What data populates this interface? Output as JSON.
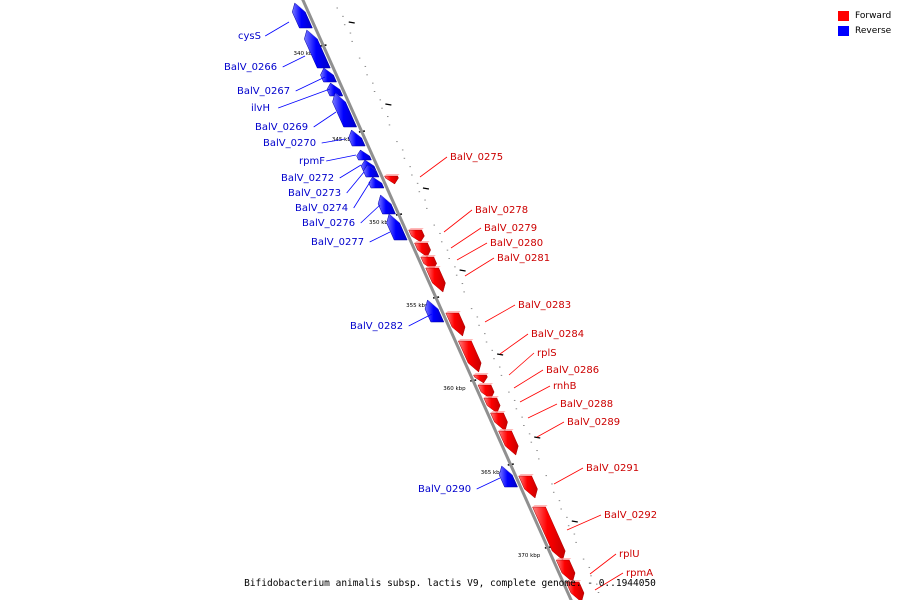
{
  "caption": "Bifidobacterium animalis subsp. lactis V9, complete genome. - 0..1944050",
  "legend": [
    {
      "label": "Forward",
      "color": "#ff0000"
    },
    {
      "label": "Reverse",
      "color": "#0000ff"
    }
  ],
  "colors": {
    "forward": "#ff0000",
    "reverse": "#0000ff",
    "forward_label": "#cc0000",
    "reverse_label": "#0000cc",
    "backbone": "#909090"
  },
  "scale_labels": [
    "340 kbp",
    "345 kbp",
    "350 kbp",
    "355 kbp",
    "360 kbp",
    "365 kbp",
    "370 kbp"
  ],
  "genes": [
    {
      "label": "cysS",
      "strand": "reverse"
    },
    {
      "label": "BalV_0266",
      "strand": "reverse"
    },
    {
      "label": "BalV_0267",
      "strand": "reverse"
    },
    {
      "label": "ilvH",
      "strand": "reverse"
    },
    {
      "label": "BalV_0269",
      "strand": "reverse"
    },
    {
      "label": "BalV_0270",
      "strand": "reverse"
    },
    {
      "label": "rpmF",
      "strand": "reverse"
    },
    {
      "label": "BalV_0272",
      "strand": "reverse"
    },
    {
      "label": "BalV_0273",
      "strand": "reverse"
    },
    {
      "label": "BalV_0274",
      "strand": "reverse"
    },
    {
      "label": "BalV_0276",
      "strand": "reverse"
    },
    {
      "label": "BalV_0277",
      "strand": "reverse"
    },
    {
      "label": "BalV_0282",
      "strand": "reverse"
    },
    {
      "label": "BalV_0290",
      "strand": "reverse"
    },
    {
      "label": "BalV_0275",
      "strand": "forward"
    },
    {
      "label": "BalV_0278",
      "strand": "forward"
    },
    {
      "label": "BalV_0279",
      "strand": "forward"
    },
    {
      "label": "BalV_0280",
      "strand": "forward"
    },
    {
      "label": "BalV_0281",
      "strand": "forward"
    },
    {
      "label": "BalV_0283",
      "strand": "forward"
    },
    {
      "label": "BalV_0284",
      "strand": "forward"
    },
    {
      "label": "rplS",
      "strand": "forward"
    },
    {
      "label": "BalV_0286",
      "strand": "forward"
    },
    {
      "label": "rnhB",
      "strand": "forward"
    },
    {
      "label": "BalV_0288",
      "strand": "forward"
    },
    {
      "label": "BalV_0289",
      "strand": "forward"
    },
    {
      "label": "BalV_0291",
      "strand": "forward"
    },
    {
      "label": "BalV_0292",
      "strand": "forward"
    },
    {
      "label": "rplU",
      "strand": "forward"
    },
    {
      "label": "rpmA",
      "strand": "forward"
    }
  ]
}
